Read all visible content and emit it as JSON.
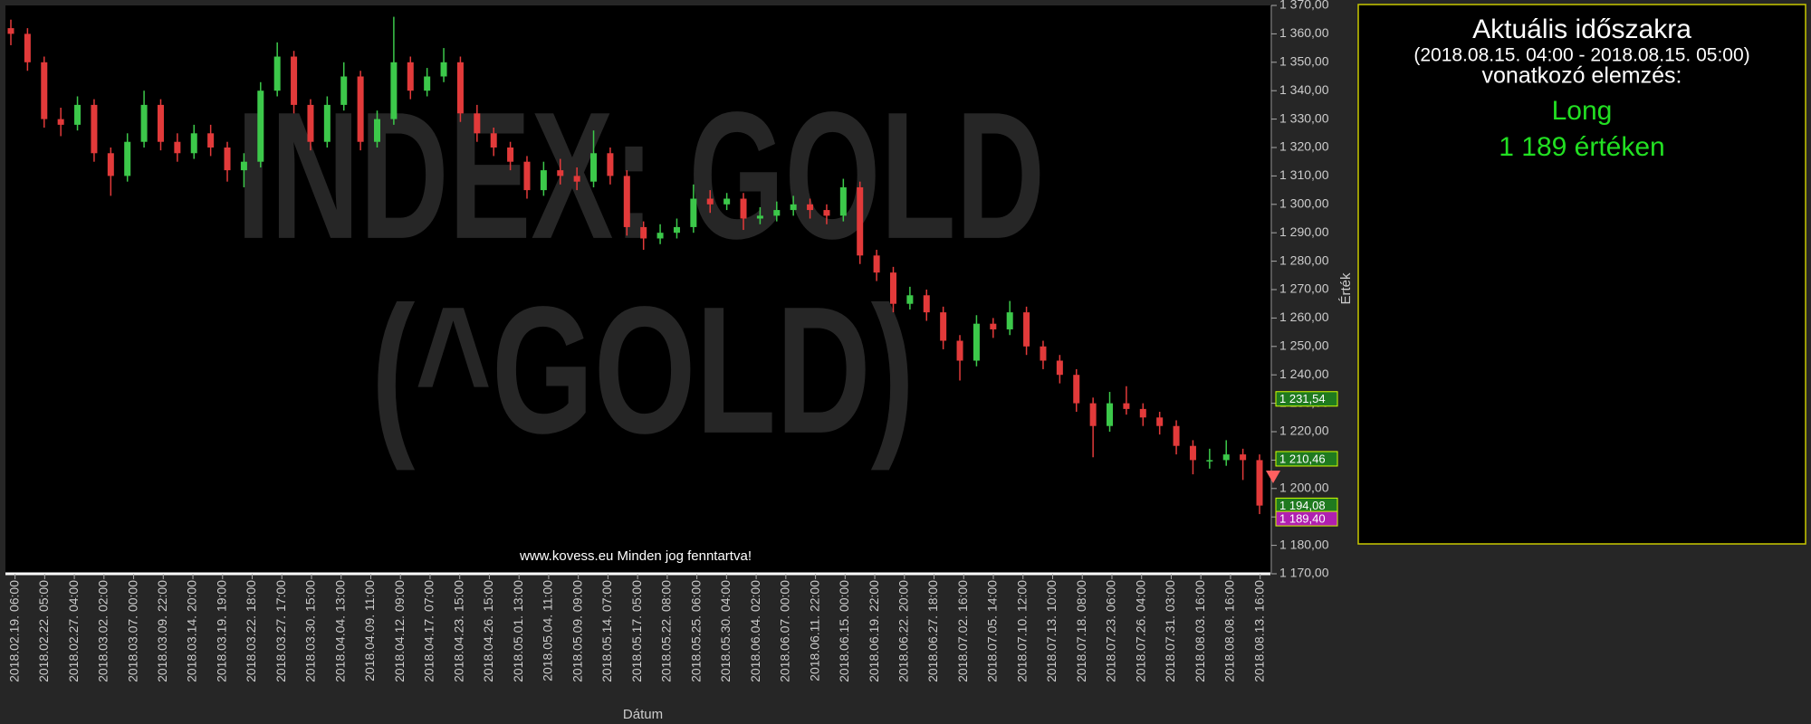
{
  "chart_data": {
    "type": "candlestick",
    "watermark": [
      "INDEX: GOLD",
      "(^GOLD)"
    ],
    "footer": "www.kovess.eu Minden jog fenntartva!",
    "xlabel": "Dátum",
    "ylabel": "Érték",
    "categories": [
      "2018.02.19. 06:00",
      "2018.02.22. 05:00",
      "2018.02.27. 04:00",
      "2018.03.02. 02:00",
      "2018.03.07. 00:00",
      "2018.03.09. 22:00",
      "2018.03.14. 20:00",
      "2018.03.19. 19:00",
      "2018.03.22. 18:00",
      "2018.03.27. 17:00",
      "2018.03.30. 15:00",
      "2018.04.04. 13:00",
      "2018.04.09. 11:00",
      "2018.04.12. 09:00",
      "2018.04.17. 07:00",
      "2018.04.23. 15:00",
      "2018.04.26. 15:00",
      "2018.05.01. 13:00",
      "2018.05.04. 11:00",
      "2018.05.09. 09:00",
      "2018.05.14. 07:00",
      "2018.05.17. 05:00",
      "2018.05.22. 08:00",
      "2018.05.25. 06:00",
      "2018.05.30. 04:00",
      "2018.06.04. 02:00",
      "2018.06.07. 00:00",
      "2018.06.11. 22:00",
      "2018.06.15. 00:00",
      "2018.06.19. 22:00",
      "2018.06.22. 20:00",
      "2018.06.27. 18:00",
      "2018.07.02. 16:00",
      "2018.07.05. 14:00",
      "2018.07.10. 12:00",
      "2018.07.13. 10:00",
      "2018.07.18. 08:00",
      "2018.07.23. 06:00",
      "2018.07.26. 04:00",
      "2018.07.31. 03:00",
      "2018.08.03. 16:00",
      "2018.08.08. 16:00",
      "2018.08.13. 16:00"
    ],
    "ohlc": [
      [
        1362,
        1365,
        1356,
        1360
      ],
      [
        1360,
        1362,
        1347,
        1350
      ],
      [
        1350,
        1352,
        1327,
        1330
      ],
      [
        1330,
        1334,
        1324,
        1328
      ],
      [
        1328,
        1338,
        1326,
        1335
      ],
      [
        1335,
        1337,
        1315,
        1318
      ],
      [
        1318,
        1320,
        1303,
        1310
      ],
      [
        1310,
        1325,
        1308,
        1322
      ],
      [
        1322,
        1340,
        1320,
        1335
      ],
      [
        1335,
        1337,
        1319,
        1322
      ],
      [
        1322,
        1325,
        1315,
        1318
      ],
      [
        1318,
        1328,
        1316,
        1325
      ],
      [
        1325,
        1328,
        1317,
        1320
      ],
      [
        1320,
        1322,
        1308,
        1312
      ],
      [
        1312,
        1318,
        1306,
        1315
      ],
      [
        1315,
        1343,
        1313,
        1340
      ],
      [
        1340,
        1357,
        1338,
        1352
      ],
      [
        1352,
        1354,
        1332,
        1335
      ],
      [
        1335,
        1337,
        1319,
        1322
      ],
      [
        1322,
        1338,
        1320,
        1335
      ],
      [
        1335,
        1350,
        1333,
        1345
      ],
      [
        1345,
        1347,
        1319,
        1322
      ],
      [
        1322,
        1333,
        1320,
        1330
      ],
      [
        1330,
        1366,
        1328,
        1350
      ],
      [
        1350,
        1352,
        1337,
        1340
      ],
      [
        1340,
        1348,
        1338,
        1345
      ],
      [
        1345,
        1355,
        1343,
        1350
      ],
      [
        1350,
        1352,
        1329,
        1332
      ],
      [
        1332,
        1335,
        1322,
        1325
      ],
      [
        1325,
        1327,
        1317,
        1320
      ],
      [
        1320,
        1322,
        1312,
        1315
      ],
      [
        1315,
        1317,
        1302,
        1305
      ],
      [
        1305,
        1315,
        1303,
        1312
      ],
      [
        1312,
        1316,
        1307,
        1310
      ],
      [
        1310,
        1313,
        1305,
        1308
      ],
      [
        1308,
        1326,
        1306,
        1318
      ],
      [
        1318,
        1320,
        1307,
        1310
      ],
      [
        1310,
        1312,
        1289,
        1292
      ],
      [
        1292,
        1294,
        1284,
        1288
      ],
      [
        1288,
        1293,
        1286,
        1290
      ],
      [
        1290,
        1295,
        1288,
        1292
      ],
      [
        1292,
        1307,
        1290,
        1302
      ],
      [
        1302,
        1305,
        1297,
        1300
      ],
      [
        1300,
        1304,
        1298,
        1302
      ],
      [
        1302,
        1304,
        1291,
        1295
      ],
      [
        1295,
        1299,
        1293,
        1296
      ],
      [
        1296,
        1301,
        1294,
        1298
      ],
      [
        1298,
        1303,
        1296,
        1300
      ],
      [
        1300,
        1302,
        1295,
        1298
      ],
      [
        1298,
        1300,
        1293,
        1296
      ],
      [
        1296,
        1309,
        1294,
        1306
      ],
      [
        1306,
        1308,
        1279,
        1282
      ],
      [
        1282,
        1284,
        1273,
        1276
      ],
      [
        1276,
        1278,
        1262,
        1265
      ],
      [
        1265,
        1271,
        1263,
        1268
      ],
      [
        1268,
        1270,
        1259,
        1262
      ],
      [
        1262,
        1264,
        1249,
        1252
      ],
      [
        1252,
        1254,
        1238,
        1245
      ],
      [
        1245,
        1261,
        1243,
        1258
      ],
      [
        1258,
        1260,
        1253,
        1256
      ],
      [
        1256,
        1266,
        1254,
        1262
      ],
      [
        1262,
        1264,
        1247,
        1250
      ],
      [
        1250,
        1252,
        1242,
        1245
      ],
      [
        1245,
        1247,
        1237,
        1240
      ],
      [
        1240,
        1242,
        1227,
        1230
      ],
      [
        1230,
        1232,
        1211,
        1222
      ],
      [
        1222,
        1234,
        1220,
        1230
      ],
      [
        1230,
        1236,
        1226,
        1228
      ],
      [
        1228,
        1230,
        1222,
        1225
      ],
      [
        1225,
        1227,
        1219,
        1222
      ],
      [
        1222,
        1224,
        1212,
        1215
      ],
      [
        1215,
        1217,
        1205,
        1210
      ],
      [
        1210,
        1214,
        1207,
        1210
      ],
      [
        1210,
        1217,
        1208,
        1212
      ],
      [
        1212,
        1214,
        1203,
        1210
      ],
      [
        1210,
        1212,
        1191,
        1194
      ]
    ],
    "up_color": "#3cc84a",
    "down_color": "#e23a3a",
    "ylim": [
      1170,
      1370
    ],
    "yticks": [
      {
        "value": 1170,
        "label": "1 170,00"
      },
      {
        "value": 1180,
        "label": "1 180,00"
      },
      {
        "value": 1190,
        "label": "1 190,00"
      },
      {
        "value": 1200,
        "label": "1 200,00"
      },
      {
        "value": 1210,
        "label": "1 210,00"
      },
      {
        "value": 1220,
        "label": "1 220,00"
      },
      {
        "value": 1230,
        "label": "1 230,00"
      },
      {
        "value": 1240,
        "label": "1 240,00"
      },
      {
        "value": 1250,
        "label": "1 250,00"
      },
      {
        "value": 1260,
        "label": "1 260,00"
      },
      {
        "value": 1270,
        "label": "1 270,00"
      },
      {
        "value": 1280,
        "label": "1 280,00"
      },
      {
        "value": 1290,
        "label": "1 290,00"
      },
      {
        "value": 1300,
        "label": "1 300,00"
      },
      {
        "value": 1310,
        "label": "1 310,00"
      },
      {
        "value": 1320,
        "label": "1 320,00"
      },
      {
        "value": 1330,
        "label": "1 330,00"
      },
      {
        "value": 1340,
        "label": "1 340,00"
      },
      {
        "value": 1350,
        "label": "1 350,00"
      },
      {
        "value": 1360,
        "label": "1 360,00"
      },
      {
        "value": 1370,
        "label": "1 370,00"
      }
    ],
    "price_tags": {
      "values": [
        1231.54,
        1210.46,
        1194.08,
        1189.4
      ],
      "value_labels": [
        "1 231,54",
        "1 210,46",
        "1 194,08",
        "1 189,40"
      ],
      "colors": [
        "#1f7a1f",
        "#1f7a1f",
        "#1f7a1f",
        "#b01fb0"
      ]
    }
  },
  "panel": {
    "title": "Aktuális időszakra",
    "period": "(2018.08.15. 04:00 - 2018.08.15. 05:00)",
    "subtitle": "vonatkozó elemzés:",
    "signal": "Long",
    "level": "1 189 értéken"
  }
}
